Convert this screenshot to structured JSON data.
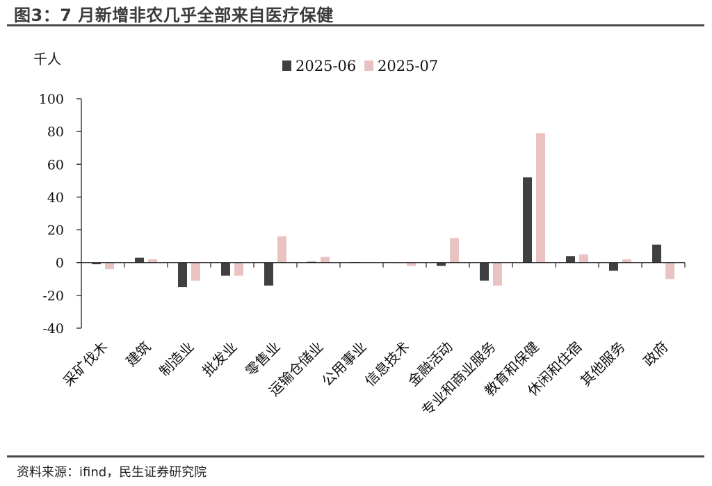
{
  "title": "图3：7 月新增非农几乎全部来自医疗保健",
  "source": "资料来源：ifind，民生证券研究院",
  "chart_data": {
    "type": "bar",
    "unit_label": "千人",
    "categories": [
      "采矿伐木",
      "建筑",
      "制造业",
      "批发业",
      "零售业",
      "运输仓储业",
      "公用事业",
      "信息技术",
      "金融活动",
      "专业和商业服务",
      "教育和保健",
      "休闲和住宿",
      "其他服务",
      "政府"
    ],
    "series": [
      {
        "name": "2025-06",
        "color": "#404040",
        "values": [
          -1,
          3,
          -15,
          -8,
          -14,
          0.5,
          0.3,
          0,
          -2,
          -11,
          52,
          4,
          -5,
          11
        ]
      },
      {
        "name": "2025-07",
        "color": "#e8c3c1",
        "values": [
          -4,
          2,
          -11,
          -8,
          16,
          3.5,
          -0.3,
          -2,
          15,
          -14,
          79,
          5,
          2,
          -10
        ]
      }
    ],
    "ylim": [
      -40,
      100
    ],
    "yticks": [
      -40,
      -20,
      0,
      20,
      40,
      60,
      80,
      100
    ],
    "legend_position": "top-center",
    "grid": false
  }
}
